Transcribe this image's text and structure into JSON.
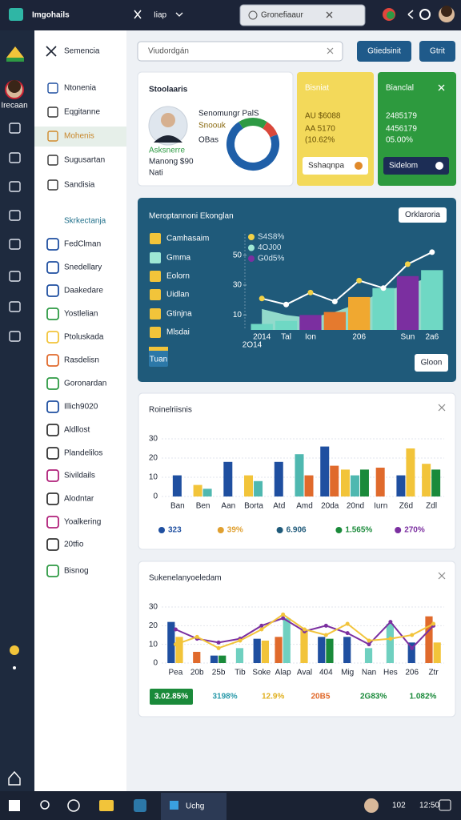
{
  "topbar": {
    "app": "Imgohails",
    "menu": "Iiap",
    "search": "Gronefiaaur"
  },
  "rail": {
    "avatar_label": "Irecaan"
  },
  "sidebar": {
    "title": "Semencia",
    "items": [
      "Ntonenia",
      "Eqgitanne",
      "Mohenis",
      "Sugusartan",
      "Sandisia"
    ],
    "section": "Skrkectanja",
    "links": [
      "FedClman",
      "Snedellary",
      "Daakedare",
      "Yostlelian",
      "Ptoluskada",
      "Rasdelisn",
      "Goronardan",
      "Illich9020",
      "Aldllost",
      "Plandelilos",
      "Sivildails",
      "Alodntar",
      "Yoalkering",
      "20tfio",
      "Bisnog"
    ]
  },
  "toolbar": {
    "placeholder": "Viudordgán",
    "buttons": [
      "Gtiedsinit",
      "Gtrit"
    ]
  },
  "profile_card": {
    "title": "Stoolaaris",
    "lines": [
      "Senomungr PalS",
      "Snoouk",
      "OBas"
    ],
    "badge": "Asksnerre",
    "amount": "Manong $90",
    "note": "Nati",
    "donut": {
      "type": "pie",
      "values": [
        18,
        10,
        72
      ],
      "colors": [
        "#2e9a44",
        "#d9483b",
        "#1f5fa8"
      ]
    }
  },
  "stat_cards": [
    {
      "title": "Bisniat",
      "lines": [
        "AU $6088",
        "AA 5170",
        "(10.62%"
      ],
      "button": "Sshaqnpa"
    },
    {
      "title": "Bianclal",
      "lines": [
        "2485179",
        "4456179",
        "05.00%"
      ],
      "button": "Sidelom"
    }
  ],
  "panel": {
    "title": "Meroptannoni Ekonglan",
    "button": "Orklaroria",
    "list": [
      "Camhasaim",
      "Gmma",
      "Eolorn",
      "Uidlan",
      "Gtinjna",
      "Mlsdai"
    ],
    "tag": "Tuan",
    "footer_button": "Gloon",
    "chart": {
      "type": "combo",
      "categories": [
        "2014",
        "Tal",
        "Ion",
        null,
        "206",
        null,
        "Sun",
        "2a6"
      ],
      "x_note": "2O14",
      "ylim": [
        0,
        60
      ],
      "yticks": [
        10,
        30,
        50
      ],
      "series": [
        {
          "name": "S4S8%",
          "kind": "line",
          "color": "#f2d147",
          "values": [
            21,
            17,
            25,
            19,
            33,
            28,
            44,
            52
          ]
        },
        {
          "name": "4OJ00",
          "kind": "area",
          "color": "#9ee8d4",
          "values": [
            14,
            10,
            8,
            12,
            18,
            26,
            30,
            36
          ]
        },
        {
          "name": "G0d5%",
          "kind": "bar",
          "color": "#7b2fa0",
          "values": [
            4,
            6,
            10,
            12,
            22,
            28,
            36,
            40
          ],
          "colors": [
            "#6fd8c4",
            "#6fd8c4",
            "#7b2fa0",
            "#e57a2e",
            "#f0a830",
            "#6fd8c4",
            "#7b2fa0",
            "#6fd8c4"
          ]
        }
      ]
    }
  },
  "charts": [
    {
      "type": "bar",
      "title": "Roinelriisnis",
      "categories": [
        "Ban",
        "Ben",
        "Aan",
        "Borta",
        "Atd",
        "Amd",
        "20da",
        "20nd",
        "Iurn",
        "Z6d",
        "Zdl"
      ],
      "ylim": [
        0,
        35
      ],
      "yticks": [
        0,
        10,
        20,
        30
      ],
      "series": [
        {
          "color": "#1f4fa0",
          "values": [
            11,
            null,
            18,
            null,
            18,
            null,
            26,
            null,
            null,
            11,
            null
          ]
        },
        {
          "color": "#f2c43a",
          "values": [
            null,
            6,
            null,
            11,
            null,
            null,
            null,
            14,
            null,
            25,
            17
          ]
        },
        {
          "color": "#4fb8b0",
          "values": [
            null,
            4,
            null,
            8,
            null,
            22,
            null,
            11,
            null,
            null,
            null
          ]
        },
        {
          "color": "#e06a2c",
          "values": [
            null,
            null,
            null,
            null,
            null,
            11,
            16,
            null,
            15,
            null,
            null
          ]
        },
        {
          "color": "#1a8a3a",
          "values": [
            null,
            null,
            null,
            null,
            null,
            null,
            null,
            14,
            null,
            null,
            14
          ]
        }
      ],
      "line_series": [],
      "stats": [
        {
          "label": "323",
          "color": "#1f4fa0"
        },
        {
          "label": "39%",
          "color": "#e0a030"
        },
        {
          "label": "6.906",
          "color": "#1f5a7a"
        },
        {
          "label": "1.565%",
          "color": "#1a8a3a"
        },
        {
          "label": "270%",
          "color": "#7b2fa0"
        }
      ]
    },
    {
      "type": "bar",
      "title": "Sukenelanyoeledam",
      "categories": [
        "Pea",
        "20b",
        "25b",
        "Tib",
        "Soke",
        "Alap",
        "Aval",
        "404",
        "Mig",
        "Nan",
        "Hes",
        "206",
        "Ztr"
      ],
      "ylim": [
        0,
        30
      ],
      "yticks": [
        0,
        10,
        20,
        30
      ],
      "series": [
        {
          "color": "#1f4fa0",
          "values": [
            22,
            null,
            4,
            null,
            13,
            null,
            null,
            14,
            14,
            null,
            null,
            11,
            null
          ]
        },
        {
          "color": "#e06a2c",
          "values": [
            null,
            6,
            null,
            null,
            null,
            14,
            null,
            null,
            null,
            null,
            null,
            null,
            25
          ]
        },
        {
          "color": "#1a8a3a",
          "values": [
            null,
            null,
            4,
            null,
            null,
            null,
            null,
            13,
            null,
            null,
            null,
            null,
            null
          ]
        },
        {
          "color": "#6fd0c0",
          "values": [
            null,
            null,
            null,
            8,
            null,
            24,
            null,
            null,
            null,
            8,
            21,
            null,
            null
          ]
        },
        {
          "color": "#f2c43a",
          "values": [
            14,
            null,
            null,
            null,
            12,
            null,
            18,
            null,
            null,
            null,
            null,
            null,
            11
          ]
        }
      ],
      "line_series": [
        {
          "color": "#7b2fa0",
          "values": [
            18,
            13,
            11,
            13,
            20,
            24,
            17,
            20,
            16,
            10,
            22,
            8,
            20
          ]
        },
        {
          "color": "#f2c43a",
          "values": [
            10,
            14,
            8,
            12,
            18,
            26,
            18,
            15,
            21,
            12,
            13,
            15,
            21
          ]
        }
      ],
      "stats": [
        {
          "label": "3.02.85%",
          "color": "#1a8a3a",
          "badge": true
        },
        {
          "label": "3198%",
          "color": "#2a9aaa"
        },
        {
          "label": "12.9%",
          "color": "#e0b020"
        },
        {
          "label": "20B5",
          "color": "#e06a2c"
        },
        {
          "label": "2G83%",
          "color": "#1a8a3a"
        },
        {
          "label": "1.082%",
          "color": "#1a8a3a"
        }
      ]
    }
  ],
  "taskbar": {
    "app": "Uchg",
    "time": "102",
    "date": "12:50"
  }
}
